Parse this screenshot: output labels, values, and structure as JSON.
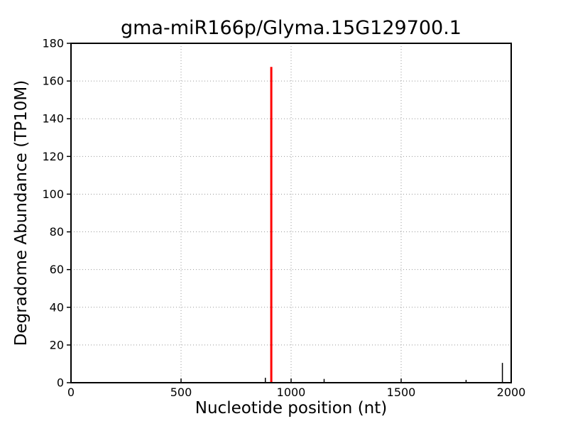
{
  "figure": {
    "background": "#ffffff"
  },
  "chart_data": {
    "type": "stem",
    "title": "gma-miR166p/Glyma.15G129700.1",
    "xlabel": "Nucleotide position (nt)",
    "ylabel": "Degradome Abundance (TP10M)",
    "xlim": [
      0,
      2000
    ],
    "ylim": [
      0,
      180
    ],
    "xticks": [
      0,
      500,
      1000,
      1500,
      2000
    ],
    "yticks": [
      0,
      20,
      40,
      60,
      80,
      100,
      120,
      140,
      160,
      180
    ],
    "grid": {
      "visible": true,
      "style": "dotted",
      "color": "#999999"
    },
    "axis_color": "#000000",
    "highlight_color": "#ff0000",
    "default_color": "#000000",
    "points": [
      {
        "x": 883,
        "y": 2.6,
        "color": "#000000",
        "width": 1.5,
        "role": "background-peak"
      },
      {
        "x": 910,
        "y": 167.5,
        "color": "#ff0000",
        "width": 3,
        "role": "miRNA-cleavage-site"
      },
      {
        "x": 1150,
        "y": 2.0,
        "color": "#000000",
        "width": 1.5,
        "role": "background-peak"
      },
      {
        "x": 1795,
        "y": 1.5,
        "color": "#000000",
        "width": 1.5,
        "role": "background-peak"
      },
      {
        "x": 1960,
        "y": 10.5,
        "color": "#000000",
        "width": 1.5,
        "role": "background-peak"
      }
    ]
  }
}
